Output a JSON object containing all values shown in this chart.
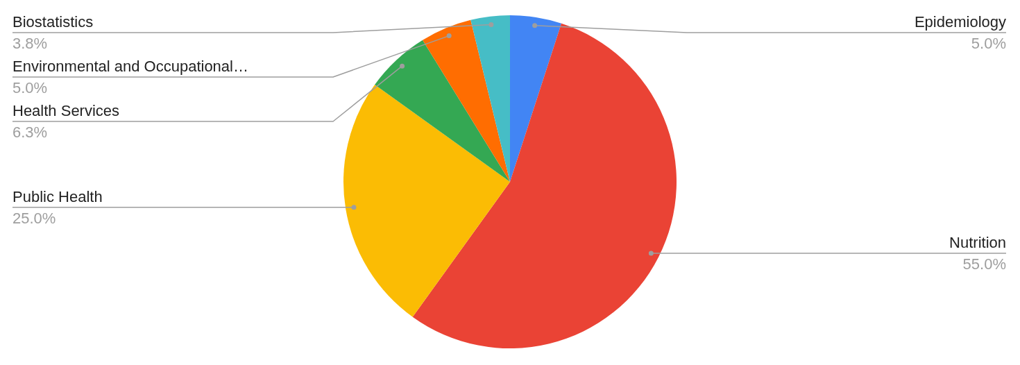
{
  "chart_data": {
    "type": "pie",
    "categories": [
      "Epidemiology",
      "Nutrition",
      "Public Health",
      "Health Services",
      "Environmental and Occupational…",
      "Biostatistics"
    ],
    "values": [
      5.0,
      55.0,
      25.0,
      6.3,
      5.0,
      3.8
    ],
    "colors": [
      "#4285f4",
      "#ea4335",
      "#fbbc04",
      "#34a853",
      "#ff6d01",
      "#46bdc6"
    ],
    "value_labels": [
      "5.0%",
      "55.0%",
      "25.0%",
      "6.3%",
      "5.0%",
      "3.8%"
    ]
  }
}
